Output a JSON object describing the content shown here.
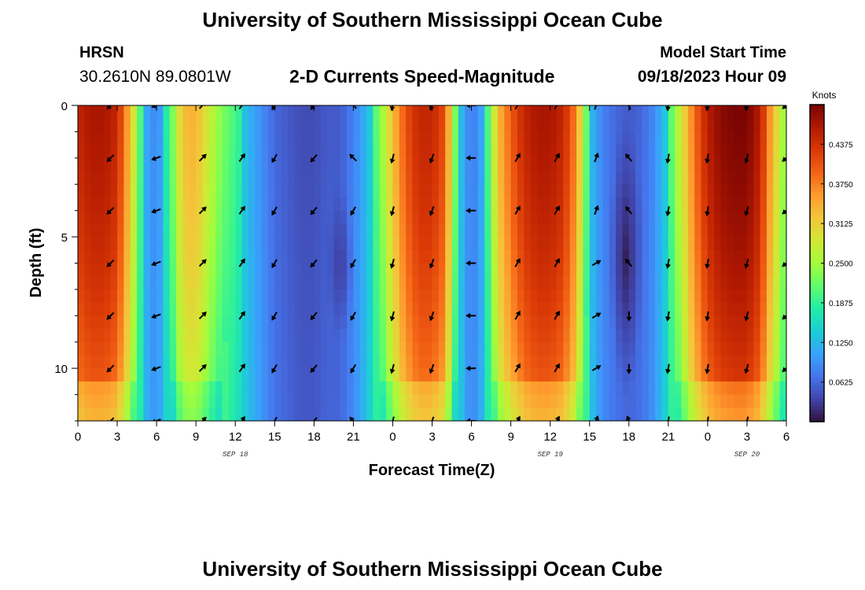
{
  "header": {
    "title": "University of Southern Mississippi Ocean Cube",
    "station": "HRSN",
    "coordinates": "30.2610N  89.0801W",
    "subtitle": "2-D Currents Speed-Magnitude",
    "model_start_label": "Model Start Time",
    "model_start_value": "09/18/2023 Hour 09"
  },
  "footer": {
    "title": "University of Southern Mississippi Ocean Cube"
  },
  "chart_data": {
    "type": "heatmap",
    "title": "2-D Currents Speed-Magnitude",
    "xlabel": "Forecast Time(Z)",
    "ylabel": "Depth (ft)",
    "x_range_hours": [
      0,
      54
    ],
    "ylim": [
      0,
      12
    ],
    "y_inverted": true,
    "x_ticks": [
      {
        "hour": 0,
        "label": "0"
      },
      {
        "hour": 3,
        "label": "3"
      },
      {
        "hour": 6,
        "label": "6"
      },
      {
        "hour": 9,
        "label": "9"
      },
      {
        "hour": 12,
        "label": "12"
      },
      {
        "hour": 15,
        "label": "15"
      },
      {
        "hour": 18,
        "label": "18"
      },
      {
        "hour": 21,
        "label": "21"
      },
      {
        "hour": 24,
        "label": "0"
      },
      {
        "hour": 27,
        "label": "3"
      },
      {
        "hour": 30,
        "label": "6"
      },
      {
        "hour": 33,
        "label": "9"
      },
      {
        "hour": 36,
        "label": "12"
      },
      {
        "hour": 39,
        "label": "15"
      },
      {
        "hour": 42,
        "label": "18"
      },
      {
        "hour": 45,
        "label": "21"
      },
      {
        "hour": 48,
        "label": "0"
      },
      {
        "hour": 51,
        "label": "3"
      },
      {
        "hour": 54,
        "label": "6"
      }
    ],
    "y_ticks": [
      {
        "depth": 0,
        "label": "0"
      },
      {
        "depth": 5,
        "label": "5"
      },
      {
        "depth": 10,
        "label": "10"
      }
    ],
    "date_labels": [
      {
        "hour": 12,
        "label": "SEP 18"
      },
      {
        "hour": 36,
        "label": "SEP 19"
      },
      {
        "hour": 51,
        "label": "SEP 20"
      }
    ],
    "colorbar": {
      "units": "Knots",
      "min": 0.0,
      "max": 0.5,
      "ticks": [
        0.0625,
        0.125,
        0.1875,
        0.25,
        0.3125,
        0.375,
        0.4375
      ],
      "tick_labels": [
        "0.0625",
        "0.1250",
        "0.1875",
        "0.2500",
        "0.3125",
        "0.3750",
        "0.4375"
      ],
      "colors": [
        "#30123b",
        "#4145ab",
        "#4675ed",
        "#39a2fc",
        "#1bcfd4",
        "#24eca6",
        "#61fc6c",
        "#a4fc3b",
        "#d1e834",
        "#f3c63a",
        "#fe9b2d",
        "#f36315",
        "#d93806",
        "#b11901",
        "#7a0403"
      ]
    },
    "speed_profile": {
      "hours": [
        0,
        1,
        2,
        3,
        4,
        4.5,
        5,
        6,
        7,
        8,
        9,
        10,
        11,
        12,
        13,
        14,
        15,
        16,
        17,
        18,
        19,
        20,
        21,
        22,
        23,
        24,
        25,
        26,
        27,
        28,
        28.5,
        29,
        30,
        31,
        32,
        33,
        34,
        35,
        36,
        37,
        38,
        38.5,
        39,
        40,
        41,
        42,
        43,
        44,
        45,
        46,
        47,
        48,
        49,
        50,
        51,
        52,
        53,
        54
      ],
      "surface_speed_knots": [
        0.42,
        0.44,
        0.44,
        0.42,
        0.3,
        0.22,
        0.13,
        0.09,
        0.17,
        0.3,
        0.31,
        0.25,
        0.2,
        0.17,
        0.13,
        0.1,
        0.07,
        0.06,
        0.05,
        0.05,
        0.06,
        0.06,
        0.09,
        0.13,
        0.2,
        0.3,
        0.38,
        0.42,
        0.42,
        0.38,
        0.25,
        0.15,
        0.08,
        0.13,
        0.3,
        0.37,
        0.42,
        0.44,
        0.44,
        0.42,
        0.34,
        0.24,
        0.14,
        0.09,
        0.07,
        0.06,
        0.07,
        0.1,
        0.16,
        0.26,
        0.36,
        0.43,
        0.46,
        0.47,
        0.47,
        0.43,
        0.3,
        0.2
      ]
    },
    "weak_zones": [
      {
        "hours": [
          19,
          21
        ],
        "depths": [
          3,
          9
        ],
        "min_speed_knots": 0.03
      },
      {
        "hours": [
          40.5,
          43
        ],
        "depths": [
          0.5,
          11
        ],
        "min_speed_knots": 0.01
      }
    ],
    "vectors": {
      "hours": [
        2.5,
        6,
        9.5,
        12.5,
        15,
        18,
        21,
        24,
        27,
        30,
        33.5,
        36.5,
        39.5,
        42,
        45,
        48,
        51,
        54
      ],
      "depths": [
        0,
        2,
        4,
        6,
        8,
        10,
        12
      ],
      "direction_deg_by_column": [
        225,
        250,
        45,
        35,
        210,
        220,
        315,
        195,
        200,
        270,
        30,
        30,
        20,
        340,
        190,
        190,
        195,
        230
      ],
      "column_overrides": [
        {
          "hour": 42,
          "depths": [
            2,
            4,
            6
          ],
          "direction_deg": 320
        },
        {
          "hour": 42,
          "depths": [
            8,
            10
          ],
          "direction_deg": 180
        },
        {
          "hour": 39.5,
          "depths": [
            6,
            8,
            10
          ],
          "direction_deg": 60
        },
        {
          "hour": 21,
          "depths": [
            4,
            6,
            8,
            10
          ],
          "direction_deg": 210
        }
      ]
    }
  }
}
